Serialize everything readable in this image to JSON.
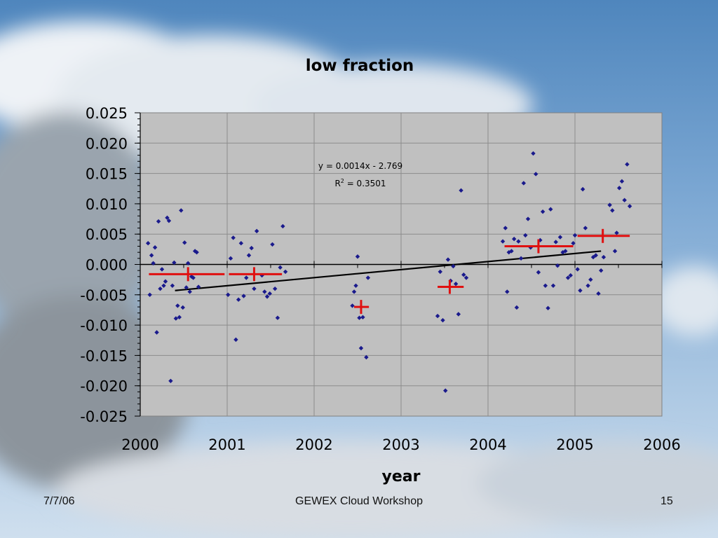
{
  "footer": {
    "date": "7/7/06",
    "center": "GEWEX Cloud Workshop",
    "page": "15"
  },
  "colors": {
    "plot_bg": "#c0c0c0",
    "points": "#1a1a8c",
    "means": "#e01010",
    "trend": "#000000"
  },
  "chart_data": {
    "type": "scatter",
    "title": "low fraction",
    "xlabel": "year",
    "ylabel": "",
    "xlim": [
      2000,
      2006
    ],
    "ylim": [
      -0.025,
      0.025
    ],
    "xticks": [
      "2000",
      "2001",
      "2002",
      "2003",
      "2004",
      "2005",
      "2006"
    ],
    "yticks": [
      "0.025",
      "0.020",
      "0.015",
      "0.010",
      "0.005",
      "0.000",
      "-0.005",
      "-0.010",
      "-0.015",
      "-0.020",
      "-0.025"
    ],
    "grid": true,
    "annotation": {
      "equation": "y = 0.0014x - 2.769",
      "r2_prefix": "R",
      "r2_sup": "2",
      "r2_value": " = 0.3501"
    },
    "trendline": {
      "x": [
        2000.4,
        2005.3
      ],
      "y": [
        -0.0043,
        0.0022
      ]
    },
    "series": [
      {
        "name": "",
        "points": [
          [
            2000.09,
            0.0035
          ],
          [
            2000.11,
            -0.005
          ],
          [
            2000.13,
            0.0015
          ],
          [
            2000.15,
            0.0002
          ],
          [
            2000.17,
            0.0028
          ],
          [
            2000.19,
            -0.0112
          ],
          [
            2000.21,
            0.0071
          ],
          [
            2000.23,
            -0.004
          ],
          [
            2000.25,
            -0.0008
          ],
          [
            2000.27,
            -0.0035
          ],
          [
            2000.29,
            -0.0028
          ],
          [
            2000.31,
            0.0077
          ],
          [
            2000.33,
            0.0072
          ],
          [
            2000.35,
            -0.0192
          ],
          [
            2000.37,
            -0.0035
          ],
          [
            2000.39,
            0.0003
          ],
          [
            2000.41,
            -0.0089
          ],
          [
            2000.43,
            -0.0068
          ],
          [
            2000.45,
            -0.0087
          ],
          [
            2000.47,
            0.0089
          ],
          [
            2000.49,
            -0.0071
          ],
          [
            2000.51,
            0.0036
          ],
          [
            2000.53,
            -0.0038
          ],
          [
            2000.55,
            0.0002
          ],
          [
            2000.57,
            -0.0045
          ],
          [
            2000.59,
            -0.002
          ],
          [
            2000.61,
            -0.0022
          ],
          [
            2000.63,
            0.0022
          ],
          [
            2000.65,
            0.002
          ],
          [
            2000.67,
            -0.0037
          ],
          [
            2001.01,
            -0.005
          ],
          [
            2001.04,
            0.001
          ],
          [
            2001.07,
            0.0044
          ],
          [
            2001.1,
            -0.0124
          ],
          [
            2001.13,
            -0.0058
          ],
          [
            2001.16,
            0.0035
          ],
          [
            2001.19,
            -0.0052
          ],
          [
            2001.22,
            -0.0022
          ],
          [
            2001.25,
            0.0015
          ],
          [
            2001.28,
            0.0027
          ],
          [
            2001.31,
            -0.004
          ],
          [
            2001.34,
            0.0055
          ],
          [
            2001.4,
            -0.0018
          ],
          [
            2001.43,
            -0.0045
          ],
          [
            2001.46,
            -0.0053
          ],
          [
            2001.49,
            -0.0048
          ],
          [
            2001.52,
            0.0033
          ],
          [
            2001.55,
            -0.004
          ],
          [
            2001.58,
            -0.0088
          ],
          [
            2001.61,
            -0.0005
          ],
          [
            2001.64,
            0.0063
          ],
          [
            2001.67,
            -0.0012
          ],
          [
            2002.44,
            -0.0068
          ],
          [
            2002.46,
            -0.0045
          ],
          [
            2002.48,
            -0.0035
          ],
          [
            2002.5,
            0.0013
          ],
          [
            2002.52,
            -0.0088
          ],
          [
            2002.54,
            -0.0138
          ],
          [
            2002.56,
            -0.0087
          ],
          [
            2002.6,
            -0.0153
          ],
          [
            2002.62,
            -0.0022
          ],
          [
            2003.42,
            -0.0085
          ],
          [
            2003.45,
            -0.0012
          ],
          [
            2003.48,
            -0.0092
          ],
          [
            2003.51,
            -0.0208
          ],
          [
            2003.54,
            0.0008
          ],
          [
            2003.57,
            -0.0027
          ],
          [
            2003.6,
            -0.0003
          ],
          [
            2003.63,
            -0.0032
          ],
          [
            2003.66,
            -0.0082
          ],
          [
            2003.69,
            0.0122
          ],
          [
            2003.72,
            -0.0017
          ],
          [
            2003.75,
            -0.0022
          ],
          [
            2004.17,
            0.0038
          ],
          [
            2004.2,
            0.006
          ],
          [
            2004.22,
            -0.0045
          ],
          [
            2004.24,
            0.002
          ],
          [
            2004.27,
            0.0022
          ],
          [
            2004.3,
            0.0042
          ],
          [
            2004.33,
            -0.0071
          ],
          [
            2004.35,
            0.0038
          ],
          [
            2004.38,
            0.001
          ],
          [
            2004.41,
            0.0134
          ],
          [
            2004.43,
            0.0048
          ],
          [
            2004.46,
            0.0075
          ],
          [
            2004.49,
            0.0028
          ],
          [
            2004.52,
            0.0183
          ],
          [
            2004.55,
            0.0149
          ],
          [
            2004.58,
            -0.0013
          ],
          [
            2004.6,
            0.004
          ],
          [
            2004.63,
            0.0087
          ],
          [
            2004.66,
            -0.0035
          ],
          [
            2004.69,
            -0.0072
          ],
          [
            2004.72,
            0.0091
          ],
          [
            2004.75,
            -0.0035
          ],
          [
            2004.78,
            0.0037
          ],
          [
            2004.8,
            -0.0002
          ],
          [
            2004.83,
            0.0045
          ],
          [
            2004.86,
            0.002
          ],
          [
            2004.89,
            0.0022
          ],
          [
            2004.92,
            -0.0022
          ],
          [
            2004.95,
            -0.0018
          ],
          [
            2004.98,
            0.0035
          ],
          [
            2005.0,
            0.0048
          ],
          [
            2005.03,
            -0.0008
          ],
          [
            2005.06,
            -0.0043
          ],
          [
            2005.09,
            0.0124
          ],
          [
            2005.12,
            0.006
          ],
          [
            2005.15,
            -0.0035
          ],
          [
            2005.18,
            -0.0025
          ],
          [
            2005.21,
            0.0012
          ],
          [
            2005.24,
            0.0015
          ],
          [
            2005.27,
            -0.0048
          ],
          [
            2005.3,
            -0.001
          ],
          [
            2005.33,
            0.0012
          ],
          [
            2005.4,
            0.0098
          ],
          [
            2005.43,
            0.0089
          ],
          [
            2005.46,
            0.0022
          ],
          [
            2005.48,
            0.0052
          ],
          [
            2005.51,
            0.0126
          ],
          [
            2005.54,
            0.0137
          ],
          [
            2005.57,
            0.0106
          ],
          [
            2005.6,
            0.0165
          ],
          [
            2005.63,
            0.0096
          ]
        ]
      }
    ],
    "means": [
      {
        "x": 2000.55,
        "y": -0.0016,
        "x_from": 2000.1,
        "x_to": 2000.97
      },
      {
        "x": 2001.31,
        "y": -0.0016,
        "x_from": 2001.02,
        "x_to": 2001.63
      },
      {
        "x": 2002.54,
        "y": -0.007,
        "x_from": 2002.46,
        "x_to": 2002.63
      },
      {
        "x": 2003.56,
        "y": -0.0037,
        "x_from": 2003.42,
        "x_to": 2003.72
      },
      {
        "x": 2004.58,
        "y": 0.003,
        "x_from": 2004.19,
        "x_to": 2004.98
      },
      {
        "x": 2005.32,
        "y": 0.0047,
        "x_from": 2005.03,
        "x_to": 2005.63
      }
    ]
  }
}
